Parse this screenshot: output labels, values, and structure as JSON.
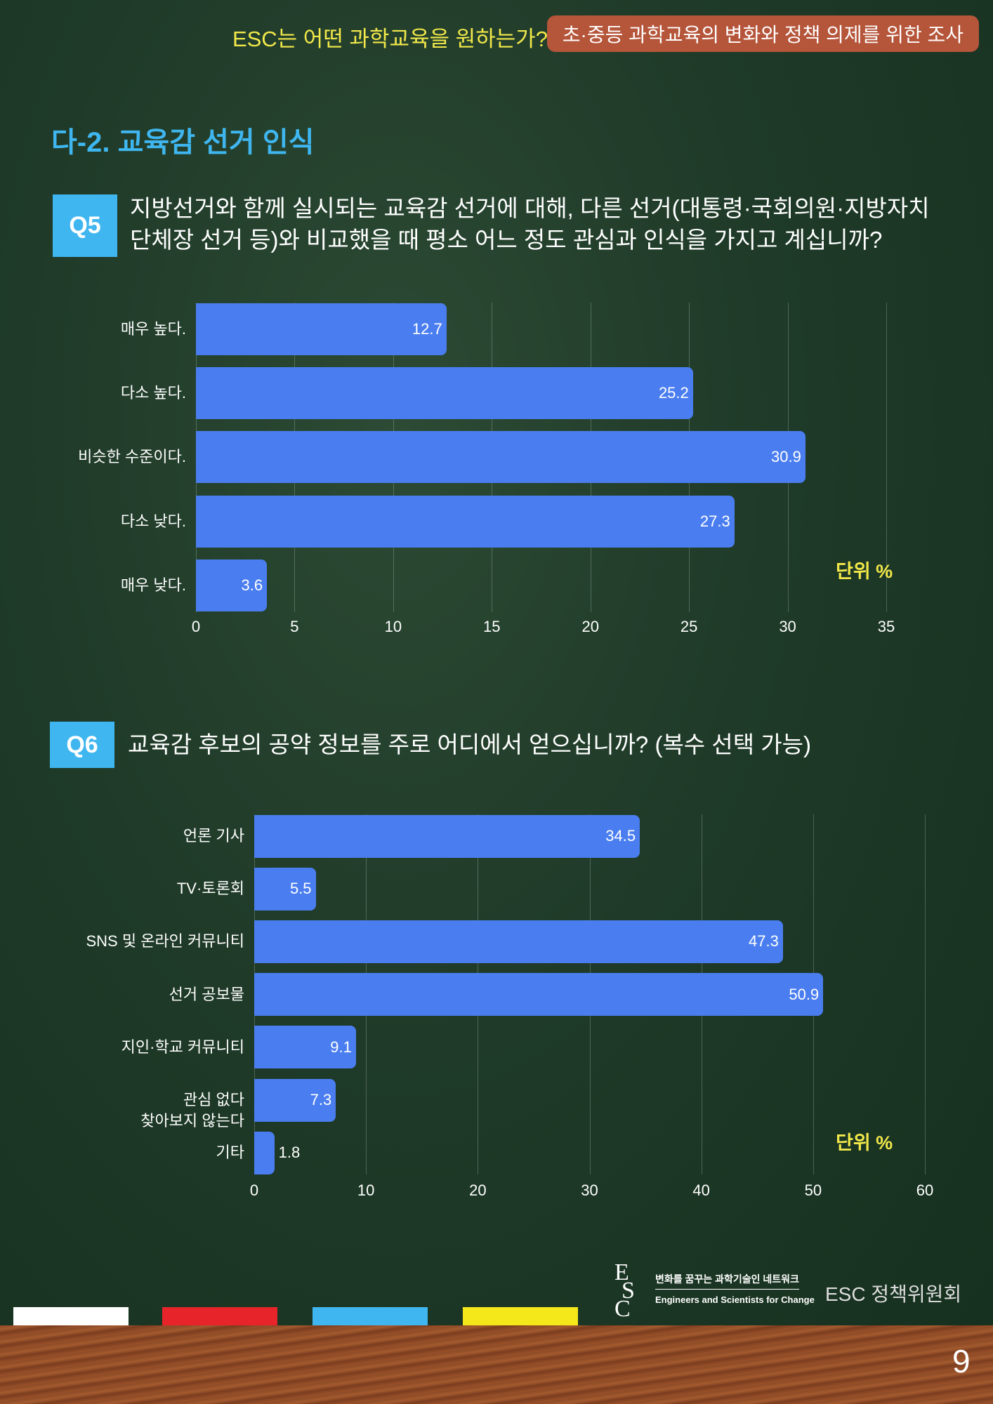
{
  "header": {
    "subtitle": "ESC는 어떤 과학교육을 원하는가?",
    "badge": "초·중등 과학교육의 변화와 정책 의제를 위한 조사"
  },
  "section_title": "다-2. 교육감 선거 인식",
  "q5": {
    "label": "Q5",
    "text": "지방선거와 함께 실시되는 교육감 선거에 대해, 다른 선거(대통령·국회의원·지방자치단체장 선거 등)와 비교했을 때 평소 어느 정도 관심과 인식을 가지고 계십니까?"
  },
  "q6": {
    "label": "Q6",
    "text": "교육감 후보의 공약 정보를 주로 어디에서 얻으십니까? (복수 선택 가능)"
  },
  "chart_data": [
    {
      "type": "bar",
      "orientation": "horizontal",
      "categories": [
        "매우 높다.",
        "다소 높다.",
        "비슷한 수준이다.",
        "다소 낮다.",
        "매우 낮다."
      ],
      "values": [
        12.7,
        25.2,
        30.9,
        27.3,
        3.6
      ],
      "color": "#4a7ef0",
      "xlim": [
        0,
        35
      ],
      "xticks": [
        0,
        5,
        10,
        15,
        20,
        25,
        30,
        35
      ],
      "grid": true,
      "unit_label": "단위 %"
    },
    {
      "type": "bar",
      "orientation": "horizontal",
      "categories": [
        "언론 기사",
        "TV·토론회",
        "SNS 및 온라인 커뮤니티",
        "선거 공보물",
        "지인·학교 커뮤니티",
        "관심 없다\n찾아보지 않는다",
        "기타"
      ],
      "values": [
        34.5,
        5.5,
        47.3,
        50.9,
        9.1,
        7.3,
        1.8
      ],
      "color": "#4a7ef0",
      "xlim": [
        0,
        60
      ],
      "xticks": [
        0,
        10,
        20,
        30,
        40,
        50,
        60
      ],
      "grid": true,
      "unit_label": "단위 %"
    }
  ],
  "footer": {
    "logo": [
      "E",
      "S",
      "C"
    ],
    "tagline_ko": "변화를 꿈꾸는 과학기술인 네트워크",
    "tagline_en": "Engineers and Scientists for Change",
    "committee": "ESC 정책위원회",
    "page_number": "9"
  }
}
